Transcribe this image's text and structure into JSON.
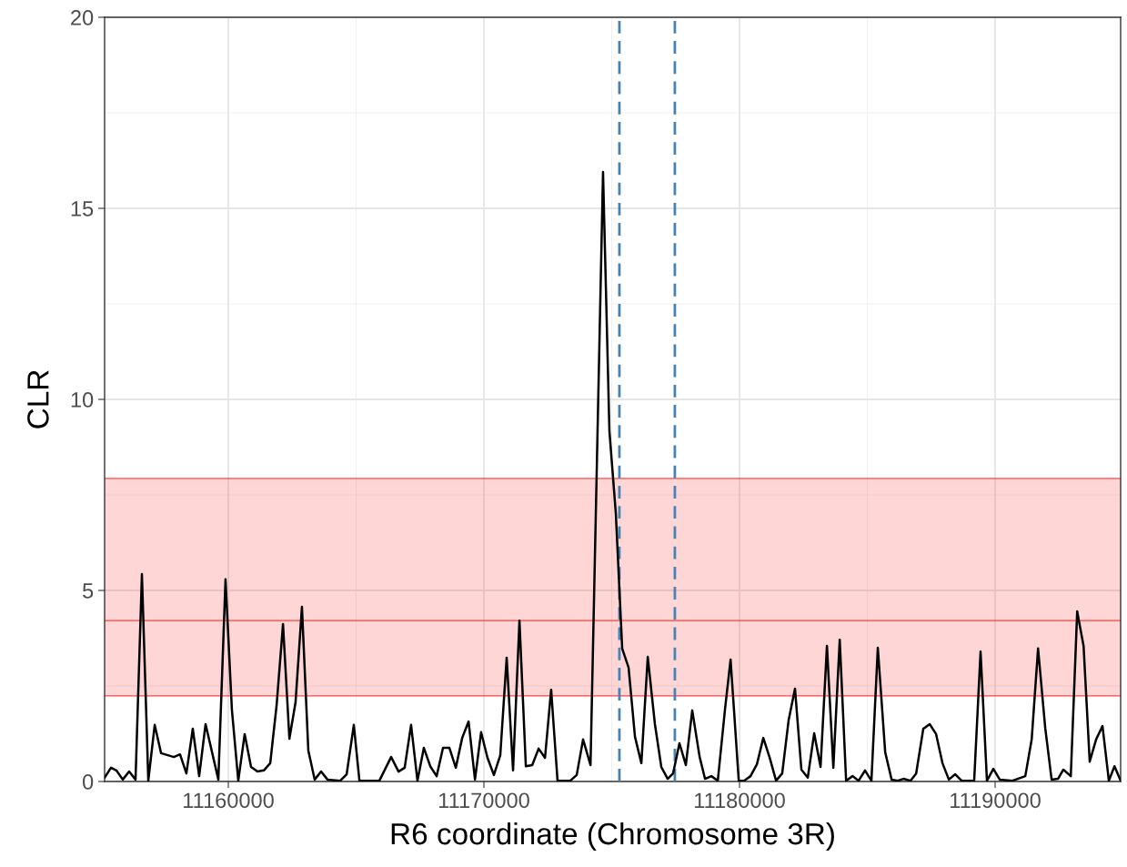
{
  "chart_data": {
    "type": "line",
    "xlabel": "R6 coordinate (Chromosome 3R)",
    "ylabel": "CLR",
    "xlim": [
      11155160,
      11194910
    ],
    "ylim": [
      0,
      20
    ],
    "xticks": [
      11160000,
      11170000,
      11180000,
      11190000
    ],
    "yticks": [
      0,
      5,
      10,
      15,
      20
    ],
    "grid": true,
    "line_style": "solid",
    "bands": [
      {
        "axis": "y",
        "from": 2.24,
        "to": 7.93,
        "color": "#ff0000"
      }
    ],
    "ref_lines": [
      {
        "axis": "y",
        "value": 4.21,
        "color": "#ff0000",
        "line_style": "solid"
      },
      {
        "axis": "y",
        "value": 2.24,
        "color": "#ff0000",
        "line_style": "solid"
      },
      {
        "axis": "y",
        "value": 7.93,
        "color": "#ff0000",
        "line_style": "solid"
      },
      {
        "axis": "x",
        "value": 11175300,
        "color": "#4682b4",
        "line_style": "dashed"
      },
      {
        "axis": "x",
        "value": 11177470,
        "color": "#4682b4",
        "line_style": "dashed"
      }
    ],
    "series": [
      {
        "color": "#000000",
        "x": [
          11155160,
          11155410,
          11155620,
          11155870,
          11156120,
          11156370,
          11156620,
          11156870,
          11157120,
          11157370,
          11157870,
          11158110,
          11158360,
          11158610,
          11158860,
          11159110,
          11159610,
          11159890,
          11160140,
          11160390,
          11160640,
          11160890,
          11161140,
          11161390,
          11161640,
          11161890,
          11162140,
          11162390,
          11162630,
          11162880,
          11163130,
          11163380,
          11163630,
          11163880,
          11164380,
          11164630,
          11164910,
          11165130,
          11165910,
          11166370,
          11166660,
          11166900,
          11167150,
          11167400,
          11167650,
          11167900,
          11168150,
          11168400,
          11168650,
          11168900,
          11169150,
          11169400,
          11169650,
          11169890,
          11170140,
          11170390,
          11170640,
          11170890,
          11171140,
          11171390,
          11171640,
          11171890,
          11172140,
          11172390,
          11172630,
          11172880,
          11173380,
          11173630,
          11173880,
          11174170,
          11174660,
          11174910,
          11175160,
          11175410,
          11175660,
          11175910,
          11176160,
          11176410,
          11176690,
          11176940,
          11177190,
          11177400,
          11177650,
          11177900,
          11178150,
          11178440,
          11178650,
          11178900,
          11179150,
          11179430,
          11179650,
          11179970,
          11180180,
          11180430,
          11180680,
          11180930,
          11181180,
          11181430,
          11181670,
          11181920,
          11182170,
          11182420,
          11182670,
          11182920,
          11183170,
          11183420,
          11183670,
          11183920,
          11184170,
          11184420,
          11184660,
          11184910,
          11185160,
          11185410,
          11185700,
          11185950,
          11186190,
          11186410,
          11186690,
          11186910,
          11187190,
          11187440,
          11187690,
          11187940,
          11188190,
          11188440,
          11188690,
          11189180,
          11189430,
          11189680,
          11189930,
          11190180,
          11190680,
          11191180,
          11191430,
          11191680,
          11191960,
          11192210,
          11192460,
          11192670,
          11192960,
          11193210,
          11193460,
          11193700,
          11193950,
          11194200,
          11194450,
          11194670,
          11194910
        ],
        "values": [
          0.1,
          0.36,
          0.29,
          0.05,
          0.26,
          0.05,
          5.43,
          0.02,
          1.48,
          0.74,
          0.64,
          0.71,
          0.21,
          1.38,
          0.14,
          1.5,
          0.05,
          5.29,
          1.88,
          0.02,
          1.24,
          0.38,
          0.26,
          0.29,
          0.48,
          2.0,
          4.12,
          1.12,
          2.07,
          4.57,
          0.81,
          0.05,
          0.26,
          0.05,
          0.02,
          0.19,
          1.48,
          0.02,
          0.02,
          0.64,
          0.26,
          0.36,
          1.48,
          0.02,
          0.88,
          0.4,
          0.14,
          0.88,
          0.88,
          0.36,
          1.14,
          1.57,
          0.05,
          1.29,
          0.62,
          0.17,
          0.69,
          3.24,
          0.29,
          4.21,
          0.4,
          0.43,
          0.86,
          0.62,
          2.4,
          0.02,
          0.02,
          0.17,
          1.1,
          0.43,
          15.95,
          9.17,
          7.02,
          3.48,
          2.98,
          1.17,
          0.48,
          3.26,
          1.5,
          0.38,
          0.07,
          0.21,
          1.0,
          0.43,
          1.86,
          0.64,
          0.07,
          0.14,
          0.02,
          1.88,
          3.19,
          0.02,
          0.02,
          0.14,
          0.45,
          1.14,
          0.62,
          0.02,
          0.21,
          1.6,
          2.43,
          0.31,
          0.1,
          1.26,
          0.38,
          3.55,
          0.36,
          3.71,
          0.02,
          0.14,
          0.02,
          0.29,
          0.02,
          3.5,
          0.76,
          0.05,
          0.02,
          0.07,
          0.02,
          0.21,
          1.38,
          1.5,
          1.24,
          0.48,
          0.05,
          0.19,
          0.02,
          0.02,
          3.4,
          0.02,
          0.33,
          0.05,
          0.02,
          0.14,
          1.1,
          3.48,
          1.4,
          0.05,
          0.07,
          0.31,
          0.14,
          4.45,
          3.55,
          0.52,
          1.1,
          1.45,
          0.02,
          0.4,
          0.02
        ]
      }
    ]
  }
}
